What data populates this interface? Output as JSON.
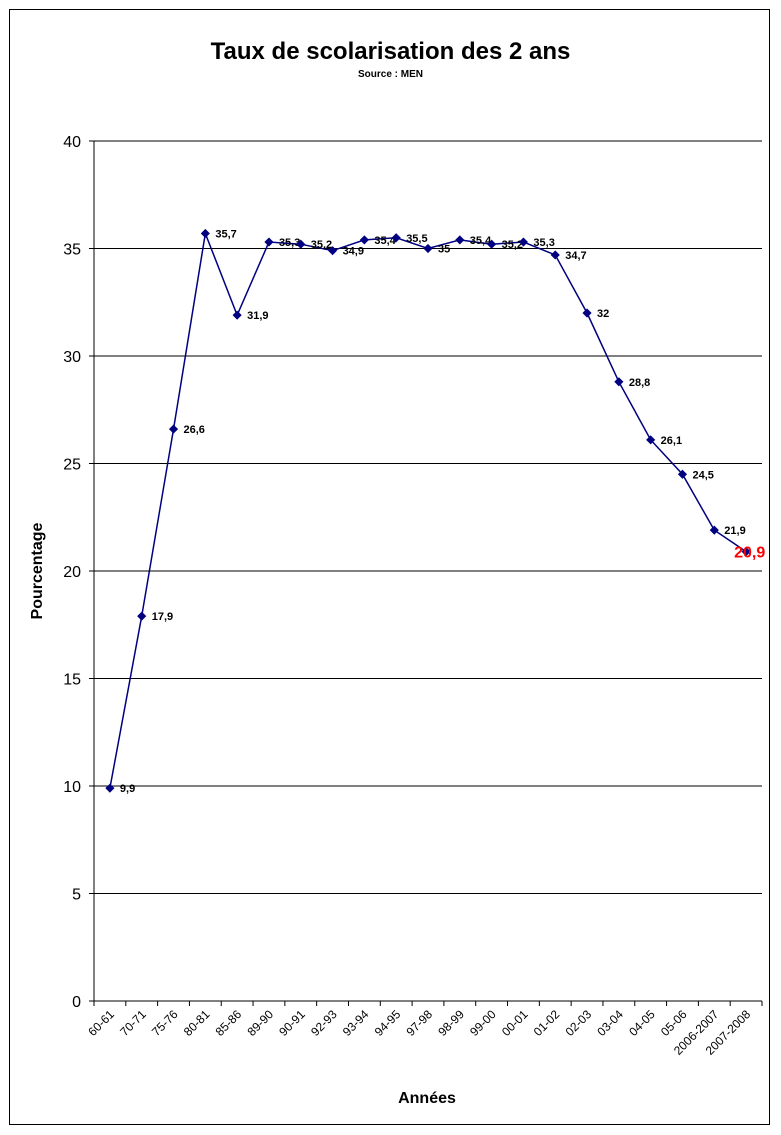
{
  "chart_data": {
    "type": "line",
    "title": "Taux de scolarisation des 2 ans",
    "subtitle": "Source : MEN",
    "xlabel": "Années",
    "ylabel": "Pourcentage",
    "ylim": [
      0,
      40
    ],
    "yticks": [
      0,
      5,
      10,
      15,
      20,
      25,
      30,
      35,
      40
    ],
    "grid": true,
    "categories": [
      "60-61",
      "70-71",
      "75-76",
      "80-81",
      "85-86",
      "89-90",
      "90-91",
      "92-93",
      "93-94",
      "94-95",
      "97-98",
      "98-99",
      "99-00",
      "00-01",
      "01-02",
      "02-03",
      "03-04",
      "04-05",
      "05-06",
      "2006-2007",
      "2007-2008"
    ],
    "series": [
      {
        "values": [
          9.9,
          17.9,
          26.6,
          35.7,
          31.9,
          35.3,
          35.2,
          34.9,
          35.4,
          35.5,
          35,
          35.4,
          35.2,
          35.3,
          34.7,
          32,
          28.8,
          26.1,
          24.5,
          21.9,
          20.9
        ],
        "labels": [
          "9,9",
          "17,9",
          "26,6",
          "35,7",
          "31,9",
          "35,3",
          "35,2",
          "34,9",
          "35,4",
          "35,5",
          "35",
          "35,4",
          "35,2",
          "35,3",
          "34,7",
          "32",
          "28,8",
          "26,1",
          "24,5",
          "21,9",
          "20,9"
        ],
        "color": "#000080",
        "highlight_last_color": "#ff0000"
      }
    ]
  }
}
